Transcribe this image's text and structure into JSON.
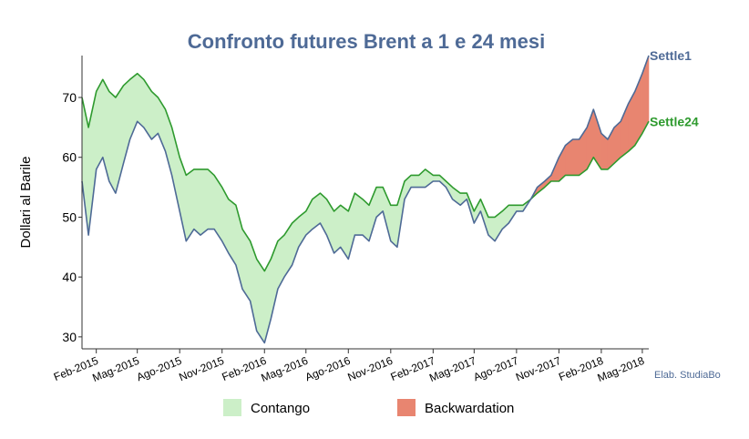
{
  "chart_data": {
    "type": "line",
    "title": "Confronto futures Brent a 1 e 24 mesi",
    "ylabel": "Dollari al Barile",
    "xlabel": "",
    "ylim": [
      28,
      77
    ],
    "yticks": [
      30,
      40,
      50,
      60,
      70
    ],
    "x_ticks": [
      "Feb-2015",
      "Mag-2015",
      "Ago-2015",
      "Nov-2015",
      "Feb-2016",
      "Mag-2016",
      "Ago-2016",
      "Nov-2016",
      "Feb-2017",
      "Mag-2017",
      "Ago-2017",
      "Nov-2017",
      "Feb-2018",
      "Mag-2018"
    ],
    "x": [
      "2015-01-01",
      "2015-01-15",
      "2015-02-01",
      "2015-02-15",
      "2015-03-01",
      "2015-03-15",
      "2015-04-01",
      "2015-04-15",
      "2015-05-01",
      "2015-05-15",
      "2015-06-01",
      "2015-06-15",
      "2015-07-01",
      "2015-07-15",
      "2015-08-01",
      "2015-08-15",
      "2015-09-01",
      "2015-09-15",
      "2015-10-01",
      "2015-10-15",
      "2015-11-01",
      "2015-11-15",
      "2015-12-01",
      "2015-12-15",
      "2016-01-01",
      "2016-01-15",
      "2016-02-01",
      "2016-02-15",
      "2016-03-01",
      "2016-03-15",
      "2016-04-01",
      "2016-04-15",
      "2016-05-01",
      "2016-05-15",
      "2016-06-01",
      "2016-06-15",
      "2016-07-01",
      "2016-07-15",
      "2016-08-01",
      "2016-08-15",
      "2016-09-01",
      "2016-09-15",
      "2016-10-01",
      "2016-10-15",
      "2016-11-01",
      "2016-11-15",
      "2016-12-01",
      "2016-12-15",
      "2017-01-01",
      "2017-01-15",
      "2017-02-01",
      "2017-02-15",
      "2017-03-01",
      "2017-03-15",
      "2017-04-01",
      "2017-04-15",
      "2017-05-01",
      "2017-05-15",
      "2017-06-01",
      "2017-06-15",
      "2017-07-01",
      "2017-07-15",
      "2017-08-01",
      "2017-08-15",
      "2017-09-01",
      "2017-09-15",
      "2017-10-01",
      "2017-10-15",
      "2017-11-01",
      "2017-11-15",
      "2017-12-01",
      "2017-12-15",
      "2018-01-01",
      "2018-01-15",
      "2018-02-01",
      "2018-02-15",
      "2018-03-01",
      "2018-03-15",
      "2018-04-01",
      "2018-04-15",
      "2018-05-01",
      "2018-05-15"
    ],
    "series": [
      {
        "name": "Settle1",
        "color": "#4e6a96",
        "values": [
          56,
          47,
          58,
          60,
          56,
          54,
          59,
          63,
          66,
          65,
          63,
          64,
          61,
          57,
          51,
          46,
          48,
          47,
          48,
          48,
          46,
          44,
          42,
          38,
          36,
          31,
          29,
          33,
          38,
          40,
          42,
          45,
          47,
          48,
          49,
          47,
          44,
          45,
          43,
          47,
          47,
          46,
          50,
          51,
          46,
          45,
          53,
          55,
          55,
          55,
          56,
          56,
          55,
          53,
          52,
          53,
          49,
          51,
          47,
          46,
          48,
          49,
          51,
          51,
          53,
          55,
          56,
          57,
          60,
          62,
          63,
          63,
          65,
          68,
          64,
          63,
          65,
          66,
          69,
          71,
          74,
          77
        ]
      },
      {
        "name": "Settle24",
        "color": "#2e9a2e",
        "values": [
          70,
          65,
          71,
          73,
          71,
          70,
          72,
          73,
          74,
          73,
          71,
          70,
          68,
          65,
          60,
          57,
          58,
          58,
          58,
          57,
          55,
          53,
          52,
          48,
          46,
          43,
          41,
          43,
          46,
          47,
          49,
          50,
          51,
          53,
          54,
          53,
          51,
          52,
          51,
          54,
          53,
          52,
          55,
          55,
          52,
          52,
          56,
          57,
          57,
          58,
          57,
          57,
          56,
          55,
          54,
          54,
          51,
          53,
          50,
          50,
          51,
          52,
          52,
          52,
          53,
          54,
          55,
          56,
          56,
          57,
          57,
          57,
          58,
          60,
          58,
          58,
          59,
          60,
          61,
          62,
          64,
          66
        ]
      }
    ],
    "end_labels": [
      "Settle1",
      "Settle24"
    ],
    "legend": {
      "position": "bottom",
      "items": [
        {
          "label": "Contango",
          "color": "#ccefc8"
        },
        {
          "label": "Backwardation",
          "color": "#e88570"
        }
      ]
    },
    "credit": "Elab. StudiaBo",
    "colors": {
      "title": "#4e6a96",
      "contango": "#ccefc8",
      "backwardation": "#e88570",
      "axis": "#333333",
      "credit": "#4e6a96"
    },
    "grid": false
  }
}
